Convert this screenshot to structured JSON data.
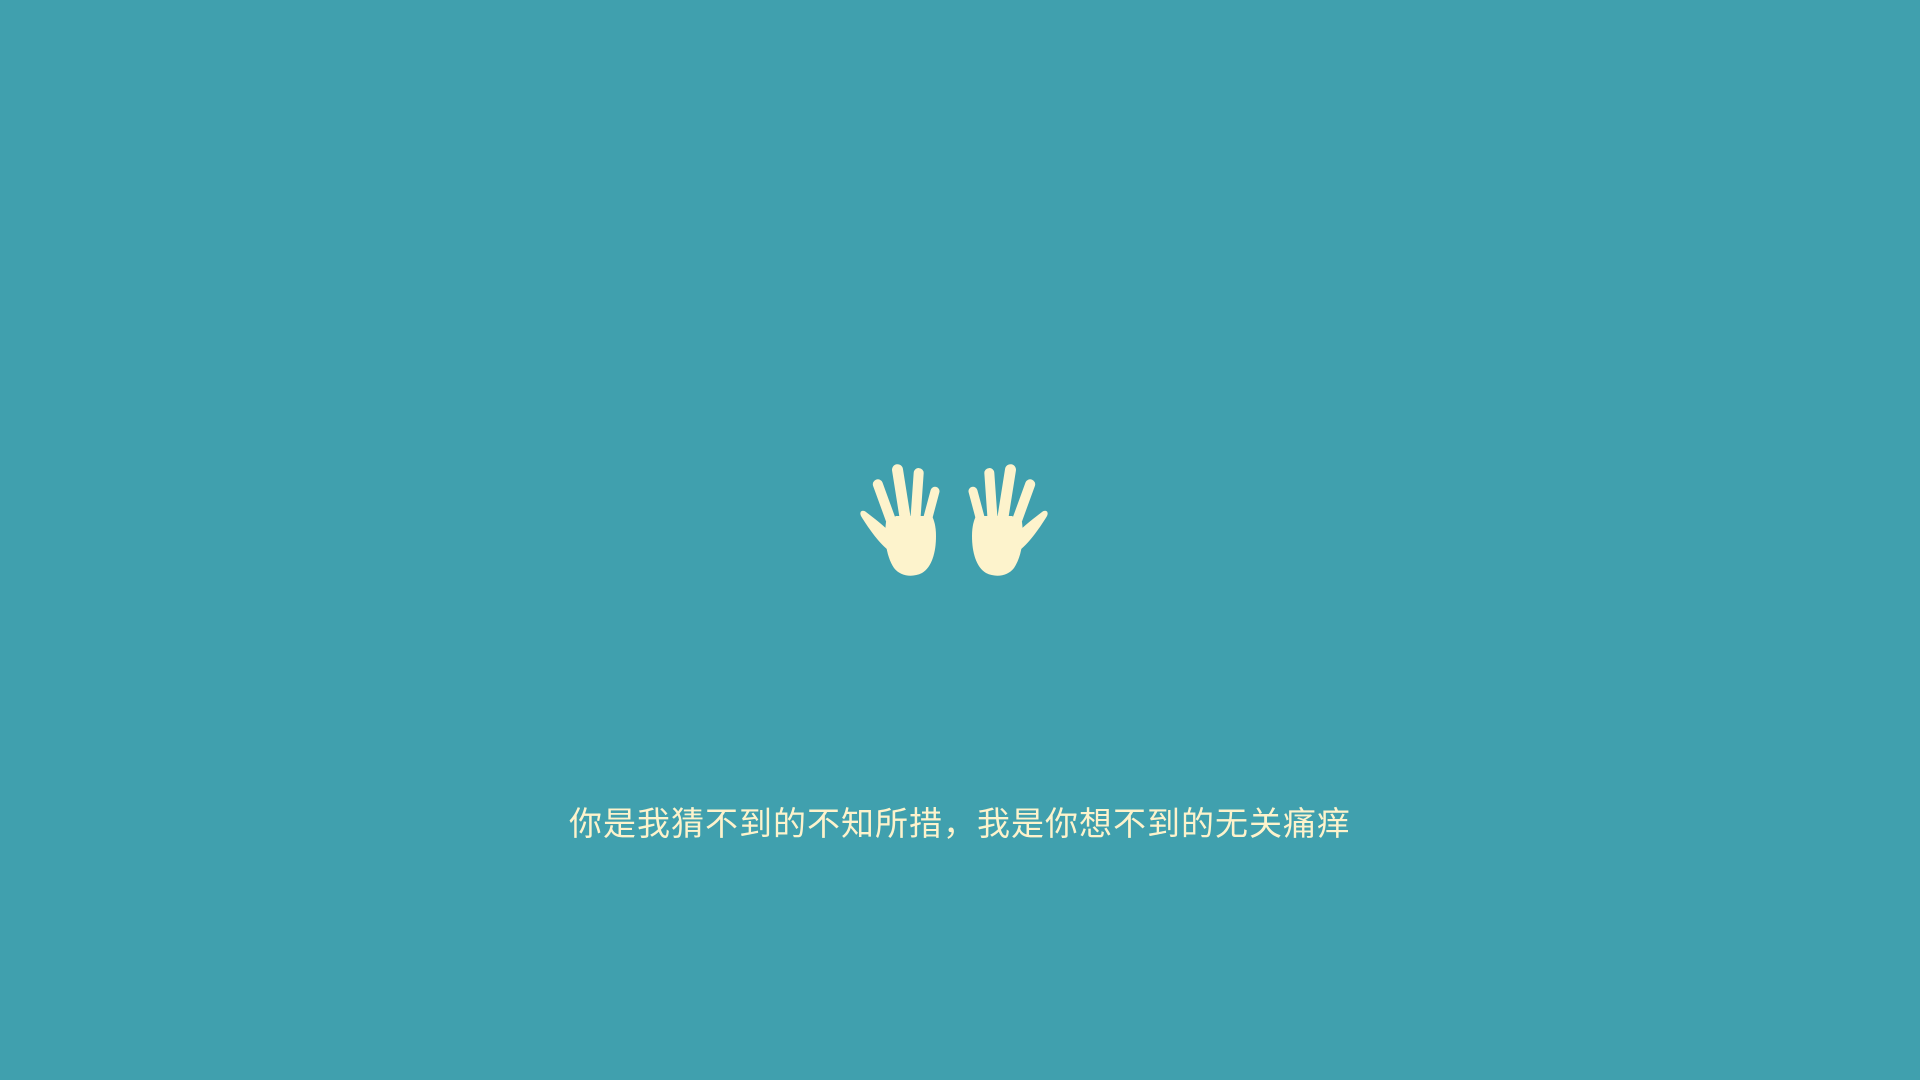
{
  "background_color": "#40a0ae",
  "accent_color": "#fdf3cc",
  "icon": "raised-hands-icon",
  "caption": "你是我猜不到的不知所措，我是你想不到的无关痛痒"
}
